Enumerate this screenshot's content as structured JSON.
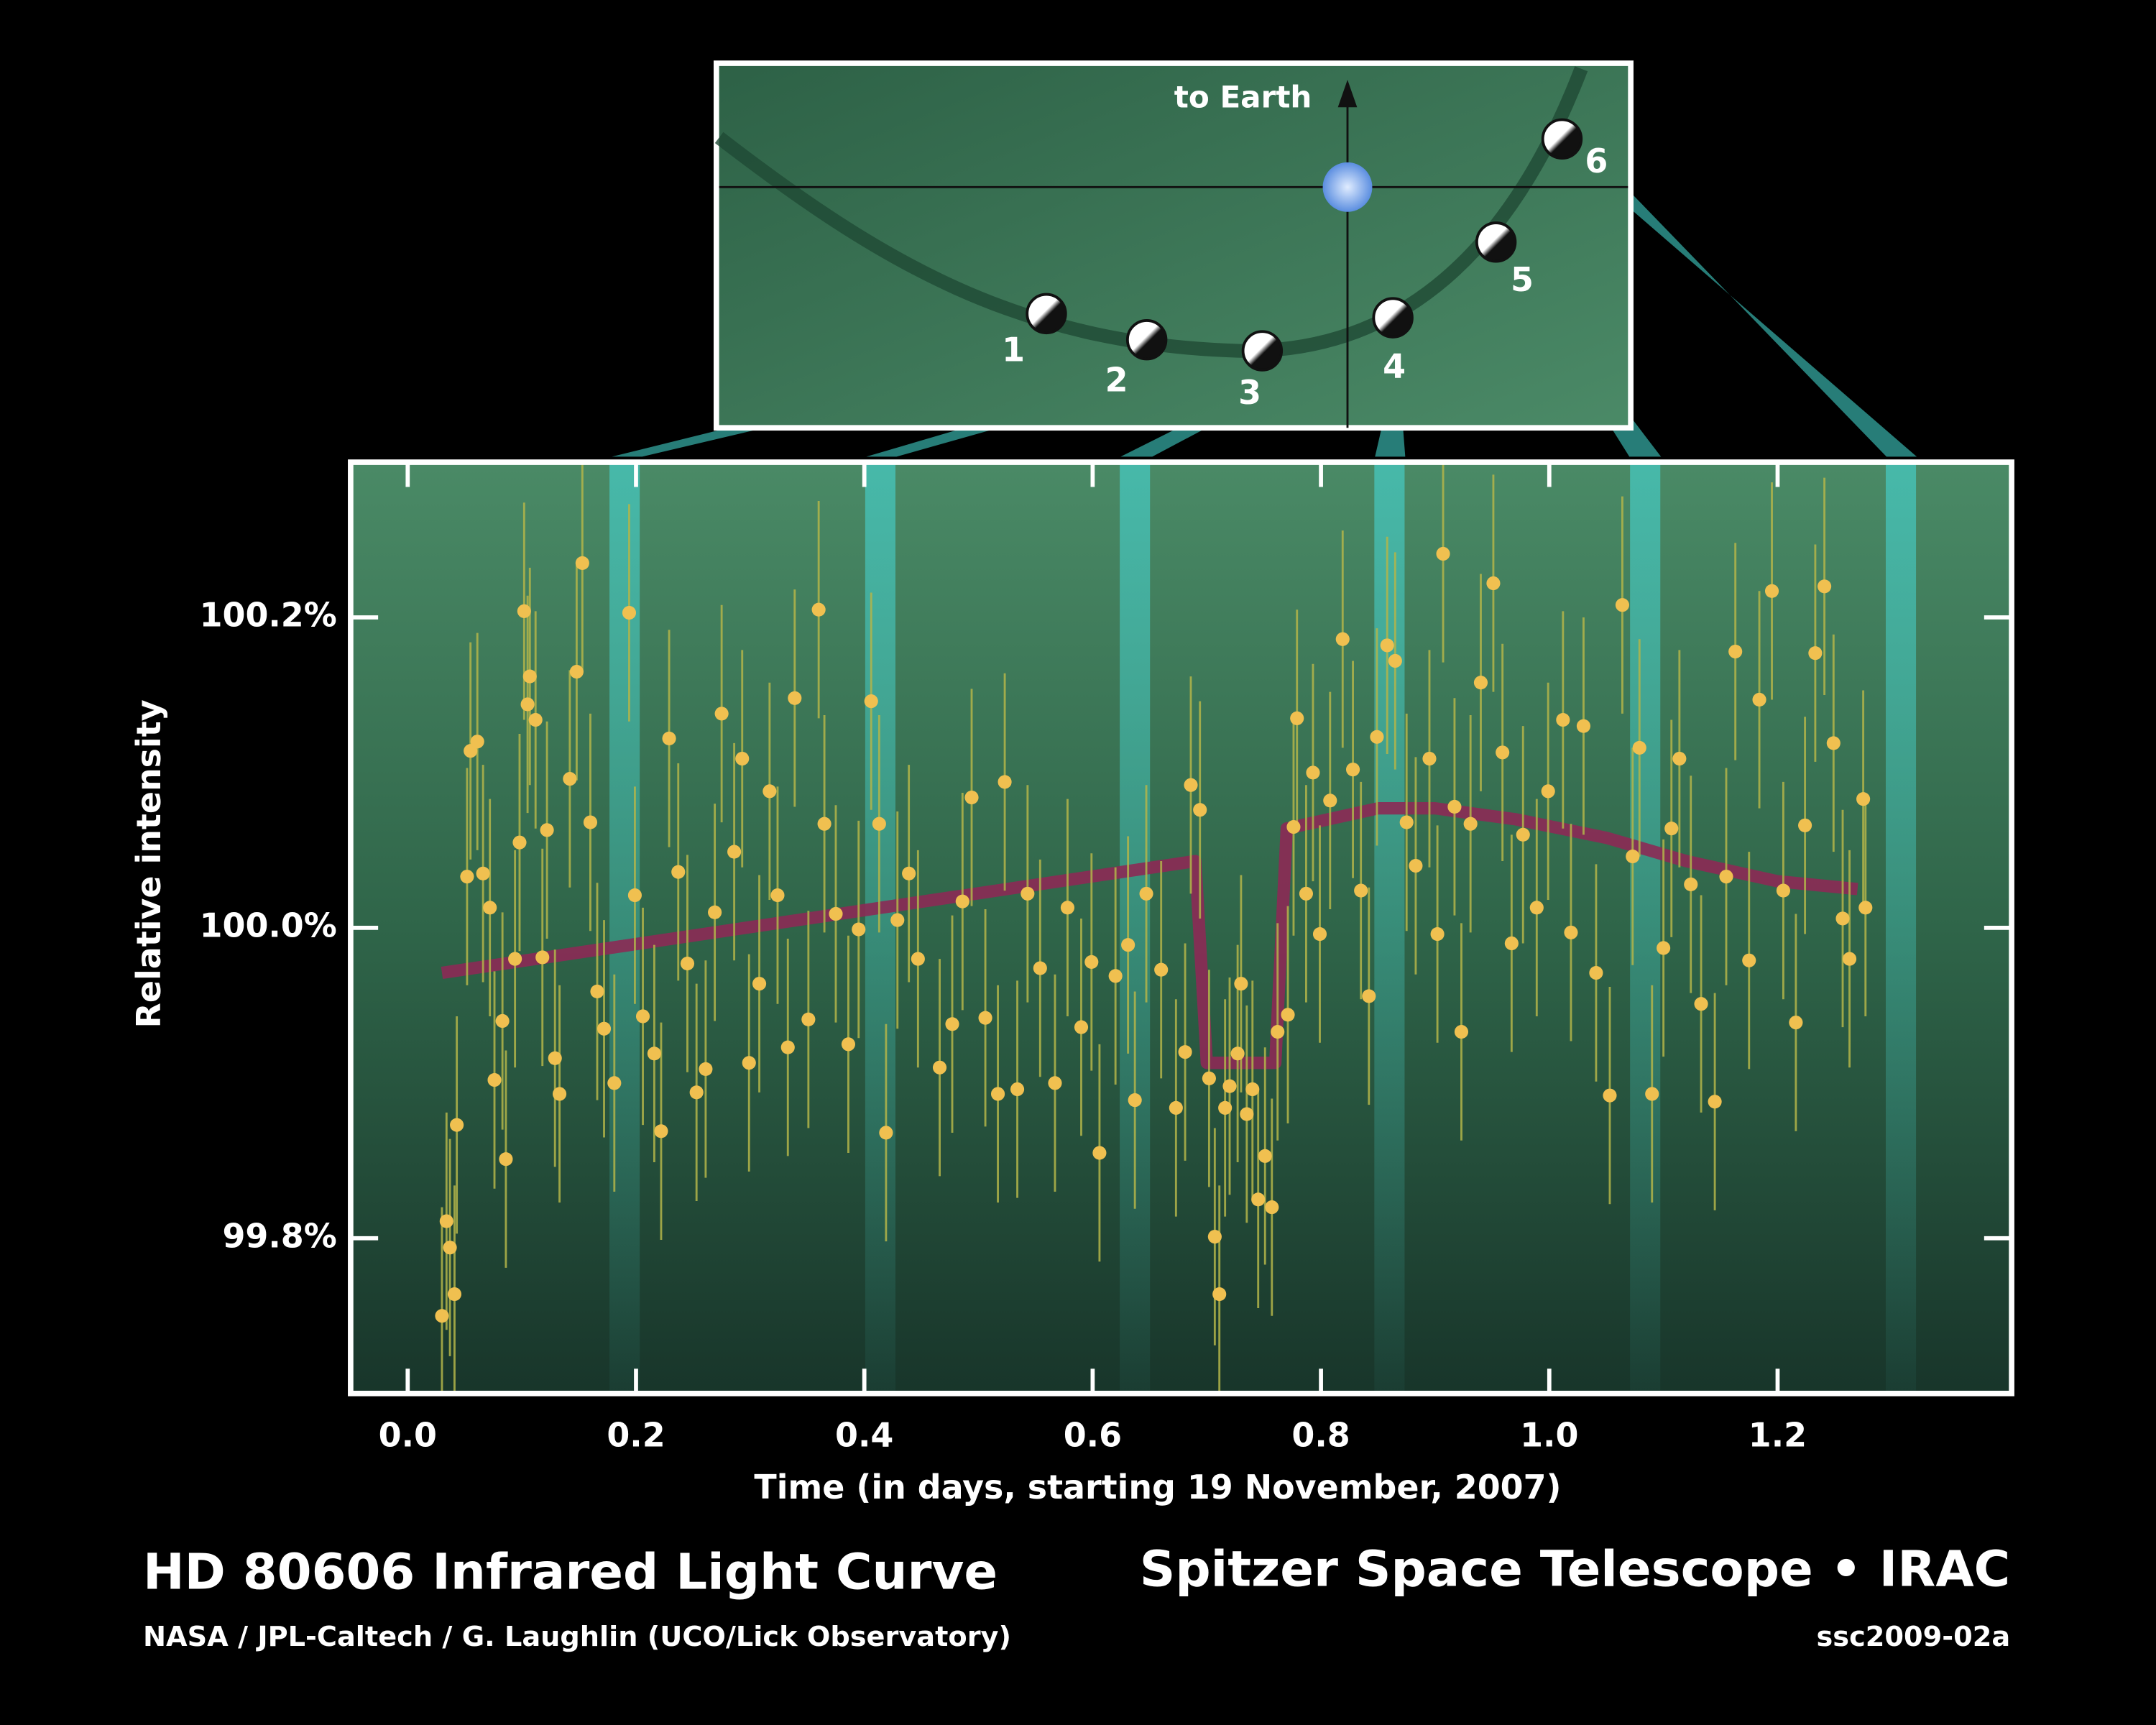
{
  "chart_data": {
    "type": "scatter",
    "title": "HD 80606 Infrared Light Curve",
    "x_label": "Time (in days, starting 19 November, 2007)",
    "y_label": "Relative intensity",
    "xlim": [
      -0.05,
      1.405
    ],
    "ylim": [
      99.7,
      100.3
    ],
    "xticks": [
      {
        "value": 0,
        "label": "0.0"
      },
      0.2,
      0.4,
      0.6,
      0.8,
      {
        "value": 1,
        "label": "1.0"
      },
      1.2
    ],
    "yticks": [
      {
        "value": 99.8,
        "label": "99.8%"
      },
      {
        "value": 100,
        "label": "100.0%"
      },
      {
        "value": 100.2,
        "label": "100.2%"
      }
    ],
    "highlight_x": [
      0.19,
      0.414,
      0.637,
      0.86,
      1.084,
      1.308
    ],
    "series": [
      {
        "mode": "points",
        "color": "#f0c050",
        "error_color": "#b3b54a",
        "error": 0.07,
        "x": [
          0.03,
          0.034,
          0.037,
          0.041,
          0.043,
          0.052,
          0.055,
          0.061,
          0.066,
          0.072,
          0.076,
          0.083,
          0.086,
          0.094,
          0.098,
          0.102,
          0.105,
          0.107,
          0.112,
          0.118,
          0.122,
          0.129,
          0.133,
          0.142,
          0.148,
          0.153,
          0.16,
          0.166,
          0.172,
          0.181,
          0.194,
          0.199,
          0.206,
          0.216,
          0.222,
          0.229,
          0.237,
          0.245,
          0.253,
          0.261,
          0.269,
          0.275,
          0.286,
          0.293,
          0.299,
          0.308,
          0.317,
          0.324,
          0.333,
          0.339,
          0.351,
          0.36,
          0.365,
          0.375,
          0.386,
          0.395,
          0.406,
          0.413,
          0.419,
          0.429,
          0.439,
          0.447,
          0.466,
          0.477,
          0.486,
          0.494,
          0.506,
          0.517,
          0.523,
          0.534,
          0.543,
          0.554,
          0.567,
          0.578,
          0.59,
          0.599,
          0.606,
          0.62,
          0.631,
          0.637,
          0.647,
          0.66,
          0.673,
          0.681,
          0.686,
          0.694,
          0.702,
          0.707,
          0.711,
          0.716,
          0.72,
          0.727,
          0.73,
          0.735,
          0.74,
          0.745,
          0.751,
          0.757,
          0.762,
          0.771,
          0.776,
          0.779,
          0.787,
          0.793,
          0.799,
          0.808,
          0.819,
          0.828,
          0.835,
          0.842,
          0.849,
          0.858,
          0.865,
          0.875,
          0.883,
          0.895,
          0.902,
          0.907,
          0.917,
          0.923,
          0.931,
          0.94,
          0.951,
          0.959,
          0.967,
          0.977,
          0.989,
          0.999,
          1.012,
          1.019,
          1.03,
          1.041,
          1.053,
          1.064,
          1.073,
          1.079,
          1.09,
          1.1,
          1.107,
          1.114,
          1.124,
          1.133,
          1.145,
          1.155,
          1.163,
          1.175,
          1.184,
          1.195,
          1.205,
          1.216,
          1.224,
          1.233,
          1.241,
          1.249,
          1.257,
          1.263,
          1.275,
          1.277
        ],
        "values": [
          99.75,
          99.811,
          99.794,
          99.764,
          99.873,
          100.033,
          100.114,
          100.12,
          100.035,
          100.013,
          99.902,
          99.94,
          99.851,
          99.98,
          100.055,
          100.204,
          100.144,
          100.162,
          100.134,
          99.981,
          100.063,
          99.916,
          99.893,
          100.096,
          100.165,
          100.235,
          100.068,
          99.959,
          99.935,
          99.9,
          100.203,
          100.021,
          99.943,
          99.919,
          99.869,
          100.122,
          100.036,
          99.977,
          99.894,
          99.909,
          100.01,
          100.138,
          100.049,
          100.109,
          99.913,
          99.964,
          100.088,
          100.021,
          99.923,
          100.148,
          99.941,
          100.205,
          100.067,
          100.009,
          99.925,
          99.999,
          100.146,
          100.067,
          99.868,
          100.005,
          100.035,
          99.98,
          99.91,
          99.938,
          100.017,
          100.084,
          99.942,
          99.893,
          100.094,
          99.896,
          100.022,
          99.974,
          99.9,
          100.013,
          99.936,
          99.978,
          99.855,
          99.969,
          99.989,
          99.889,
          100.022,
          99.973,
          99.884,
          99.92,
          100.092,
          100.076,
          99.903,
          99.801,
          99.764,
          99.884,
          99.898,
          99.919,
          99.964,
          99.88,
          99.896,
          99.825,
          99.853,
          99.82,
          99.933,
          99.944,
          100.065,
          100.135,
          100.022,
          100.1,
          99.996,
          100.082,
          100.186,
          100.102,
          100.024,
          99.956,
          100.123,
          100.182,
          100.172,
          100.068,
          100.04,
          100.109,
          99.996,
          100.241,
          100.078,
          99.933,
          100.067,
          100.158,
          100.222,
          100.113,
          99.99,
          100.06,
          100.013,
          100.088,
          100.134,
          99.997,
          100.13,
          99.971,
          99.892,
          100.208,
          100.046,
          100.116,
          99.893,
          99.987,
          100.064,
          100.109,
          100.028,
          99.951,
          99.888,
          100.033,
          100.178,
          99.979,
          100.147,
          100.217,
          100.024,
          99.939,
          100.066,
          100.177,
          100.22,
          100.119,
          100.006,
          99.98,
          100.083,
          100.013
        ]
      },
      {
        "mode": "line",
        "color": "#8c2a55",
        "x": [
          0.03,
          0.69,
          0.7,
          0.76,
          0.77,
          0.85,
          0.9,
          0.97,
          1.05,
          1.12,
          1.2,
          1.27
        ],
        "values": [
          99.971,
          100.043,
          99.913,
          99.913,
          100.064,
          100.077,
          100.077,
          100.07,
          100.058,
          100.043,
          100.03,
          100.025
        ]
      }
    ]
  },
  "inset": {
    "label": "to Earth",
    "positions": [
      "1",
      "2",
      "3",
      "4",
      "5",
      "6"
    ]
  },
  "footer": {
    "credit": "NASA / JPL-Caltech / G. Laughlin (UCO/Lick Observatory)",
    "source": "Spitzer Space Telescope • IRAC",
    "id": "ssc2009-02a"
  }
}
